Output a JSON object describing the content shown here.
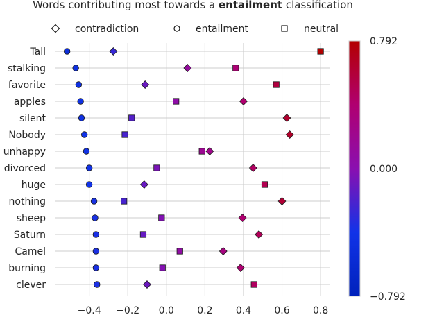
{
  "chart_data": {
    "type": "scatter",
    "title_prefix": "Words contributing most towards a ",
    "title_bold": "entailment",
    "title_suffix": " classification",
    "legend": [
      {
        "name": "contradiction",
        "marker": "diamond"
      },
      {
        "name": "entailment",
        "marker": "circle"
      },
      {
        "name": "neutral",
        "marker": "square"
      }
    ],
    "categories": [
      "Tall",
      "stalking",
      "favorite",
      "apples",
      "silent",
      "Nobody",
      "unhappy",
      "divorced",
      "huge",
      "nothing",
      "sheep",
      "Saturn",
      "Camel",
      "burning",
      "clever"
    ],
    "series": [
      {
        "name": "contradiction",
        "marker": "diamond",
        "values": [
          -0.275,
          0.11,
          -0.11,
          0.4,
          0.625,
          0.64,
          0.225,
          0.45,
          -0.115,
          0.6,
          0.395,
          0.48,
          0.295,
          0.385,
          -0.1
        ]
      },
      {
        "name": "entailment",
        "marker": "circle",
        "values": [
          -0.515,
          -0.47,
          -0.455,
          -0.445,
          -0.44,
          -0.425,
          -0.415,
          -0.4,
          -0.4,
          -0.375,
          -0.37,
          -0.365,
          -0.365,
          -0.365,
          -0.36
        ]
      },
      {
        "name": "neutral",
        "marker": "square",
        "values": [
          0.8,
          0.36,
          0.57,
          0.05,
          -0.18,
          -0.215,
          0.185,
          -0.05,
          0.51,
          -0.22,
          -0.025,
          -0.12,
          0.07,
          -0.02,
          0.455
        ]
      }
    ],
    "xlim": [
      -0.575,
      0.85
    ],
    "xticks": [
      -0.4,
      -0.2,
      0.0,
      0.2,
      0.4,
      0.6,
      0.8
    ],
    "xtick_labels": [
      "−0.4",
      "−0.2",
      "0.0",
      "0.2",
      "0.4",
      "0.6",
      "0.8"
    ],
    "grid": true,
    "colorbar": {
      "min": -0.792,
      "max": 0.792,
      "tick_labels": [
        "0.792",
        "0.000",
        "−0.792"
      ],
      "colormap": [
        "#0022bb",
        "#1133e8",
        "#8a0fb0",
        "#b00070",
        "#b30000"
      ]
    }
  }
}
